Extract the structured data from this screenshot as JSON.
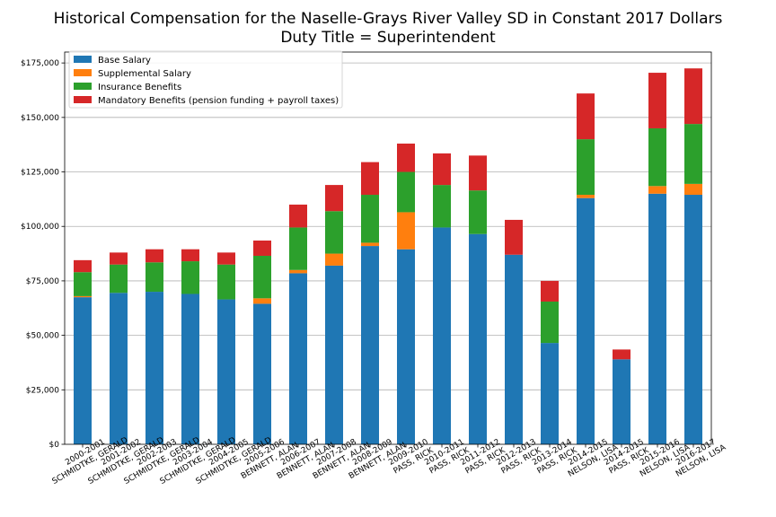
{
  "chart_data": {
    "type": "bar",
    "stacked": true,
    "title": "Historical Compensation for the Naselle-Grays River Valley SD in Constant 2017 Dollars",
    "subtitle": "Duty Title = Superintendent",
    "categories": [
      "2000-2001\nSCHMIDTKE, GERALD",
      "2001-2002\nSCHMIDTKE, GERALD",
      "2002-2003\nSCHMIDTKE, GERALD",
      "2003-2004\nSCHMIDTKE, GERALD",
      "2004-2005\nSCHMIDTKE, GERALD",
      "2005-2006\nBENNETT, ALAN",
      "2006-2007\nBENNETT, ALAN",
      "2007-2008\nBENNETT, ALAN",
      "2008-2009\nBENNETT, ALAN",
      "2009-2010\nPASS, RICK",
      "2010-2011\nPASS, RICK",
      "2011-2012\nPASS, RICK",
      "2012-2013\nPASS, RICK",
      "2013-2014\nPASS, RICK",
      "2014-2015\nNELSON, LISA",
      "2014-2015\nPASS, RICK",
      "2015-2016\nNELSON, LISA",
      "2016-2017\nNELSON, LISA"
    ],
    "series": [
      {
        "name": "Base Salary",
        "color": "#1f77b4",
        "values": [
          67500,
          69500,
          70000,
          69000,
          66500,
          64500,
          78500,
          82000,
          91000,
          89500,
          99500,
          96500,
          87000,
          46500,
          113000,
          39000,
          115000,
          114500
        ]
      },
      {
        "name": "Supplemental Salary",
        "color": "#ff7f0e",
        "values": [
          500,
          0,
          0,
          0,
          0,
          2500,
          1500,
          5500,
          1500,
          17000,
          0,
          0,
          0,
          0,
          1500,
          0,
          3500,
          5000
        ]
      },
      {
        "name": "Insurance Benefits",
        "color": "#2ca02c",
        "values": [
          11000,
          13000,
          13500,
          15000,
          16000,
          19500,
          19500,
          19500,
          22000,
          18500,
          19500,
          20000,
          0,
          19000,
          25500,
          0,
          26500,
          27500
        ]
      },
      {
        "name": "Mandatory Benefits (pension funding + payroll taxes)",
        "color": "#d62728",
        "values": [
          5500,
          5500,
          6000,
          5500,
          5500,
          7000,
          10500,
          12000,
          15000,
          13000,
          14500,
          16000,
          16000,
          9500,
          21000,
          4500,
          25500,
          25500
        ]
      }
    ],
    "yticks": [
      "$0",
      "$25,000",
      "$50,000",
      "$75,000",
      "$100,000",
      "$125,000",
      "$150,000",
      "$175,000"
    ],
    "ylim": [
      0,
      180000
    ],
    "ytick_step": 25000,
    "grid": "y",
    "legend_position": "top-left"
  }
}
